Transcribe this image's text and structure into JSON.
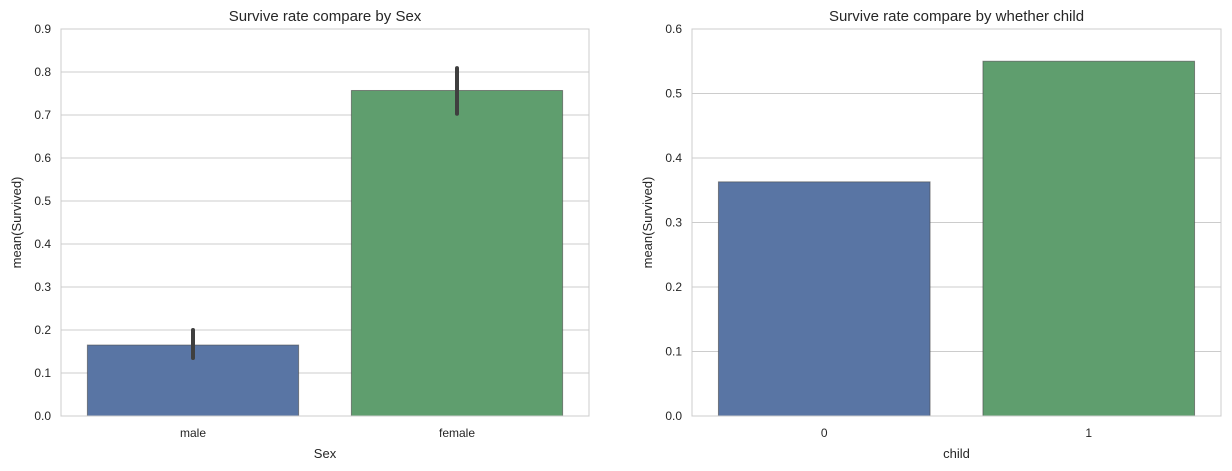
{
  "chart_data": [
    {
      "type": "bar",
      "title": "Survive rate compare by Sex",
      "xlabel": "Sex",
      "ylabel": "mean(Survived)",
      "categories": [
        "male",
        "female"
      ],
      "values": [
        0.165,
        0.757
      ],
      "error_bars": [
        [
          0.135,
          0.2
        ],
        [
          0.703,
          0.809
        ]
      ],
      "colors": [
        "#5975a4",
        "#5f9e6e"
      ],
      "ylim": [
        0,
        0.9
      ],
      "yticks": [
        0.0,
        0.1,
        0.2,
        0.3,
        0.4,
        0.5,
        0.6,
        0.7,
        0.8,
        0.9
      ],
      "ytick_labels": [
        "0.0",
        "0.1",
        "0.2",
        "0.3",
        "0.4",
        "0.5",
        "0.6",
        "0.7",
        "0.8",
        "0.9"
      ],
      "grid": "horizontal"
    },
    {
      "type": "bar",
      "title": "Survive rate compare by whether child",
      "xlabel": "child",
      "ylabel": "mean(Survived)",
      "categories": [
        "0",
        "1"
      ],
      "values": [
        0.363,
        0.55
      ],
      "colors": [
        "#5975a4",
        "#5f9e6e"
      ],
      "ylim": [
        0,
        0.6
      ],
      "yticks": [
        0.0,
        0.1,
        0.2,
        0.3,
        0.4,
        0.5,
        0.6
      ],
      "ytick_labels": [
        "0.0",
        "0.1",
        "0.2",
        "0.3",
        "0.4",
        "0.5",
        "0.6"
      ],
      "grid": "horizontal"
    }
  ]
}
